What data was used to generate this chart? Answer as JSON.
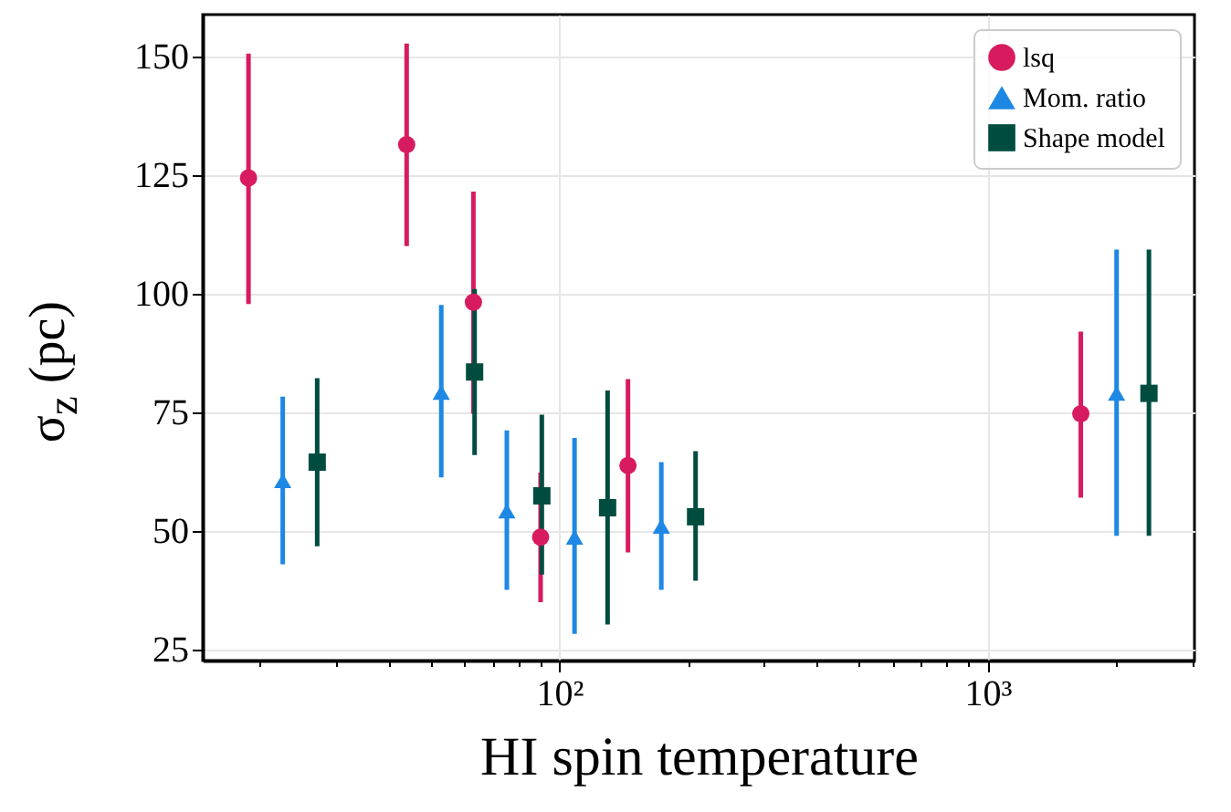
{
  "chart_data": {
    "type": "scatter",
    "xlabel": "HI spin temperature",
    "ylabel": "σ$_{z}$ (pc)",
    "log": "x",
    "grid": true,
    "legend": "top right",
    "xlim": [
      14.7,
      3040
    ],
    "xticks": [
      {
        "value": 20,
        "label": null
      },
      {
        "value": 30,
        "label": null
      },
      {
        "value": 40,
        "label": null
      },
      {
        "value": 50,
        "label": null
      },
      {
        "value": 60,
        "label": null
      },
      {
        "value": 70,
        "label": null
      },
      {
        "value": 80,
        "label": null
      },
      {
        "value": 90,
        "label": null
      },
      {
        "value": 100,
        "label": "10²"
      },
      {
        "value": 200,
        "label": null
      },
      {
        "value": 300,
        "label": null
      },
      {
        "value": 400,
        "label": null
      },
      {
        "value": 500,
        "label": null
      },
      {
        "value": 600,
        "label": null
      },
      {
        "value": 700,
        "label": null
      },
      {
        "value": 800,
        "label": null
      },
      {
        "value": 900,
        "label": null
      },
      {
        "value": 1000,
        "label": "10³"
      },
      {
        "value": 2000,
        "label": null
      },
      {
        "value": 3000,
        "label": null
      }
    ],
    "ylim": [
      22.7,
      158.8
    ],
    "yticks": [
      25,
      50,
      75,
      100,
      125,
      150
    ],
    "series": [
      {
        "name": "lsq",
        "color": "#d81b60",
        "marker": "circle",
        "x": [
          18.8,
          44,
          63,
          90.4,
          144.6,
          1650
        ],
        "values": [
          124.4,
          131.4,
          98.2,
          48.7,
          63.8,
          74.7
        ],
        "errors": [
          [
            97.8,
            150.6
          ],
          [
            110,
            152.7
          ],
          [
            74.7,
            121.5
          ],
          [
            35,
            62.3
          ],
          [
            45.5,
            82
          ],
          [
            57,
            92
          ]
        ]
      },
      {
        "name": "Mom. ratio",
        "color": "#1e88e5",
        "marker": "triangle",
        "x": [
          22.6,
          53,
          75.4,
          108.5,
          173,
          2000
        ],
        "values": [
          60.6,
          79.2,
          54.2,
          48.7,
          51,
          79
        ],
        "errors": [
          [
            43,
            78.3
          ],
          [
            61.3,
            97.6
          ],
          [
            37.6,
            71.2
          ],
          [
            28.3,
            69.6
          ],
          [
            37.6,
            64.5
          ],
          [
            49,
            109.3
          ]
        ]
      },
      {
        "name": "Shape model",
        "color": "#004d40",
        "marker": "square",
        "x": [
          27.2,
          63.4,
          91,
          129.6,
          208,
          2380
        ],
        "values": [
          64.5,
          83.5,
          57.4,
          54.9,
          53,
          79
        ],
        "errors": [
          [
            46.8,
            82.2
          ],
          [
            66,
            101
          ],
          [
            40.8,
            74.5
          ],
          [
            30.3,
            79.6
          ],
          [
            39.5,
            66.8
          ],
          [
            49,
            109.3
          ]
        ]
      }
    ]
  }
}
